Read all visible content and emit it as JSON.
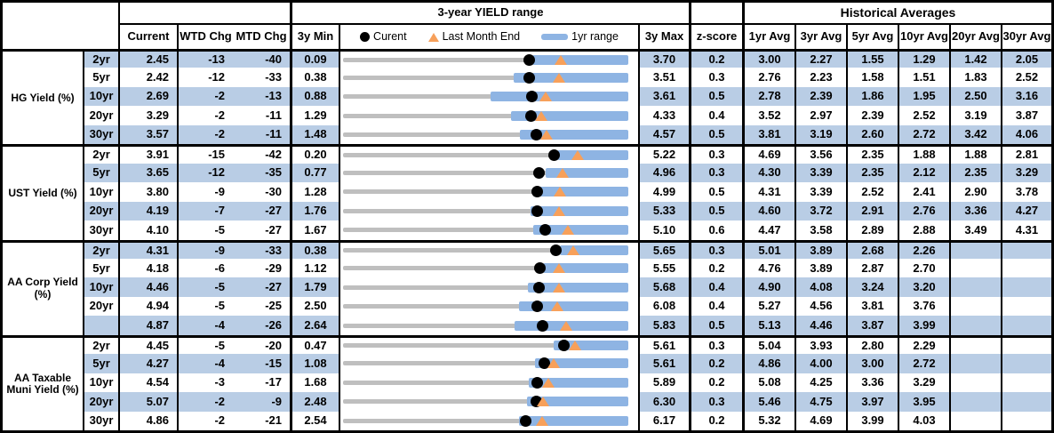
{
  "header": {
    "chart_title": "3-year YIELD range",
    "hist_title": "Historical Averages",
    "current": "Current",
    "wtd": "WTD Chg",
    "mtd": "MTD Chg",
    "min": "3y Min",
    "max": "3y Max",
    "z": "z-score",
    "avgs": [
      "1yr Avg",
      "3yr Avg",
      "5yr Avg",
      "10yr Avg",
      "20yr Avg",
      "30yr Avg"
    ],
    "legend": {
      "current": "Curent",
      "last_month": "Last Month End",
      "range": "1yr range"
    }
  },
  "colors": {
    "stripe": "#B9CDE5",
    "range_bar": "#8EB4E3",
    "track_gray": "#BFBFBF",
    "marker_dot": "#000000",
    "marker_triangle": "#F7A05A",
    "border": "#000000"
  },
  "chart_data": {
    "type": "table",
    "embedded_chart": {
      "type": "range-bar",
      "title": "3-year YIELD range",
      "legend": [
        "Curent",
        "Last Month End",
        "1yr range"
      ],
      "note": "gray track spans 3y Min to 3y Max; blue bar is 1yr range; black dot is current; orange triangle is last month end"
    },
    "columns": [
      "Current",
      "WTD Chg",
      "MTD Chg",
      "3y Min",
      "3-year YIELD range",
      "3y Max",
      "z-score",
      "1yr Avg",
      "3yr Avg",
      "5yr Avg",
      "10yr Avg",
      "20yr Avg",
      "30yr Avg"
    ],
    "groups": [
      {
        "label": "HG Yield (%)",
        "rows": [
          {
            "tenor": "2yr",
            "current": "2.45",
            "wtd": "-13",
            "mtd": "-40",
            "min3y": "0.09",
            "max3y": "3.70",
            "z": "0.2",
            "avgs": [
              "3.00",
              "2.27",
              "1.55",
              "1.29",
              "1.42",
              "2.05"
            ],
            "last_month_end": 2.85,
            "range1y_lo": 2.49,
            "range1y_hi": 3.7
          },
          {
            "tenor": "5yr",
            "current": "2.42",
            "wtd": "-12",
            "mtd": "-33",
            "min3y": "0.38",
            "max3y": "3.51",
            "z": "0.3",
            "avgs": [
              "2.76",
              "2.23",
              "1.58",
              "1.51",
              "1.83",
              "2.52"
            ],
            "last_month_end": 2.75,
            "range1y_lo": 2.25,
            "range1y_hi": 3.51
          },
          {
            "tenor": "10yr",
            "current": "2.69",
            "wtd": "-2",
            "mtd": "-13",
            "min3y": "0.88",
            "max3y": "3.61",
            "z": "0.5",
            "avgs": [
              "2.78",
              "2.39",
              "1.86",
              "1.95",
              "2.50",
              "3.16"
            ],
            "last_month_end": 2.82,
            "range1y_lo": 2.29,
            "range1y_hi": 3.61
          },
          {
            "tenor": "20yr",
            "current": "3.29",
            "wtd": "-2",
            "mtd": "-11",
            "min3y": "1.29",
            "max3y": "4.33",
            "z": "0.4",
            "avgs": [
              "3.52",
              "2.97",
              "2.39",
              "2.52",
              "3.19",
              "3.87"
            ],
            "last_month_end": 3.4,
            "range1y_lo": 3.08,
            "range1y_hi": 4.33
          },
          {
            "tenor": "30yr",
            "current": "3.57",
            "wtd": "-2",
            "mtd": "-11",
            "min3y": "1.48",
            "max3y": "4.57",
            "z": "0.5",
            "avgs": [
              "3.81",
              "3.19",
              "2.60",
              "2.72",
              "3.42",
              "4.06"
            ],
            "last_month_end": 3.68,
            "range1y_lo": 3.4,
            "range1y_hi": 4.57
          }
        ]
      },
      {
        "label": "UST Yield (%)",
        "rows": [
          {
            "tenor": "2yr",
            "current": "3.91",
            "wtd": "-15",
            "mtd": "-42",
            "min3y": "0.20",
            "max3y": "5.22",
            "z": "0.3",
            "avgs": [
              "4.69",
              "3.56",
              "2.35",
              "1.88",
              "1.88",
              "2.81"
            ],
            "last_month_end": 4.33,
            "range1y_lo": 3.97,
            "range1y_hi": 5.22
          },
          {
            "tenor": "5yr",
            "current": "3.65",
            "wtd": "-12",
            "mtd": "-35",
            "min3y": "0.77",
            "max3y": "4.96",
            "z": "0.3",
            "avgs": [
              "4.30",
              "3.39",
              "2.35",
              "2.12",
              "2.35",
              "3.29"
            ],
            "last_month_end": 4.0,
            "range1y_lo": 3.74,
            "range1y_hi": 4.96
          },
          {
            "tenor": "10yr",
            "current": "3.80",
            "wtd": "-9",
            "mtd": "-30",
            "min3y": "1.28",
            "max3y": "4.99",
            "z": "0.5",
            "avgs": [
              "4.31",
              "3.39",
              "2.52",
              "2.41",
              "2.90",
              "3.78"
            ],
            "last_month_end": 4.1,
            "range1y_lo": 3.84,
            "range1y_hi": 4.99
          },
          {
            "tenor": "20yr",
            "current": "4.19",
            "wtd": "-7",
            "mtd": "-27",
            "min3y": "1.76",
            "max3y": "5.33",
            "z": "0.5",
            "avgs": [
              "4.60",
              "3.72",
              "2.91",
              "2.76",
              "3.36",
              "4.27"
            ],
            "last_month_end": 4.46,
            "range1y_lo": 4.11,
            "range1y_hi": 5.33
          },
          {
            "tenor": "30yr",
            "current": "4.10",
            "wtd": "-5",
            "mtd": "-27",
            "min3y": "1.67",
            "max3y": "5.10",
            "z": "0.6",
            "avgs": [
              "4.47",
              "3.58",
              "2.89",
              "2.88",
              "3.49",
              "4.31"
            ],
            "last_month_end": 4.37,
            "range1y_lo": 3.96,
            "range1y_hi": 5.1
          }
        ]
      },
      {
        "label": "AA Corp Yield (%)",
        "rows": [
          {
            "tenor": "2yr",
            "current": "4.31",
            "wtd": "-9",
            "mtd": "-33",
            "min3y": "0.38",
            "max3y": "5.65",
            "z": "0.3",
            "avgs": [
              "5.01",
              "3.89",
              "2.68",
              "2.26",
              "",
              ""
            ],
            "last_month_end": 4.64,
            "range1y_lo": 4.38,
            "range1y_hi": 5.65
          },
          {
            "tenor": "5yr",
            "current": "4.18",
            "wtd": "-6",
            "mtd": "-29",
            "min3y": "1.12",
            "max3y": "5.55",
            "z": "0.2",
            "avgs": [
              "4.76",
              "3.89",
              "2.87",
              "2.70",
              "",
              ""
            ],
            "last_month_end": 4.47,
            "range1y_lo": 4.22,
            "range1y_hi": 5.55
          },
          {
            "tenor": "10yr",
            "current": "4.46",
            "wtd": "-5",
            "mtd": "-27",
            "min3y": "1.79",
            "max3y": "5.68",
            "z": "0.4",
            "avgs": [
              "4.90",
              "4.08",
              "3.24",
              "3.20",
              "",
              ""
            ],
            "last_month_end": 4.73,
            "range1y_lo": 4.31,
            "range1y_hi": 5.68
          },
          {
            "tenor": "20yr",
            "current": "4.94",
            "wtd": "-5",
            "mtd": "-25",
            "min3y": "2.50",
            "max3y": "6.08",
            "z": "0.4",
            "avgs": [
              "5.27",
              "4.56",
              "3.81",
              "3.76",
              "",
              ""
            ],
            "last_month_end": 5.19,
            "range1y_lo": 4.71,
            "range1y_hi": 6.08
          },
          {
            "tenor": "",
            "current": "4.87",
            "wtd": "-4",
            "mtd": "-26",
            "min3y": "2.64",
            "max3y": "5.83",
            "z": "0.5",
            "avgs": [
              "5.13",
              "4.46",
              "3.87",
              "3.99",
              "",
              ""
            ],
            "last_month_end": 5.13,
            "range1y_lo": 4.56,
            "range1y_hi": 5.83
          }
        ]
      },
      {
        "label": "AA Taxable Muni Yield (%)",
        "rows": [
          {
            "tenor": "2yr",
            "current": "4.45",
            "wtd": "-5",
            "mtd": "-20",
            "min3y": "0.47",
            "max3y": "5.61",
            "z": "0.3",
            "avgs": [
              "5.04",
              "3.93",
              "2.80",
              "2.29",
              "",
              ""
            ],
            "last_month_end": 4.65,
            "range1y_lo": 4.27,
            "range1y_hi": 5.61
          },
          {
            "tenor": "5yr",
            "current": "4.27",
            "wtd": "-4",
            "mtd": "-15",
            "min3y": "1.08",
            "max3y": "5.61",
            "z": "0.2",
            "avgs": [
              "4.86",
              "4.00",
              "3.00",
              "2.72",
              "",
              ""
            ],
            "last_month_end": 4.42,
            "range1y_lo": 4.13,
            "range1y_hi": 5.61
          },
          {
            "tenor": "10yr",
            "current": "4.54",
            "wtd": "-3",
            "mtd": "-17",
            "min3y": "1.68",
            "max3y": "5.89",
            "z": "0.2",
            "avgs": [
              "5.08",
              "4.25",
              "3.36",
              "3.29",
              "",
              ""
            ],
            "last_month_end": 4.71,
            "range1y_lo": 4.42,
            "range1y_hi": 5.89
          },
          {
            "tenor": "20yr",
            "current": "5.07",
            "wtd": "-2",
            "mtd": "-9",
            "min3y": "2.48",
            "max3y": "6.30",
            "z": "0.3",
            "avgs": [
              "5.46",
              "4.75",
              "3.97",
              "3.95",
              "",
              ""
            ],
            "last_month_end": 5.16,
            "range1y_lo": 4.94,
            "range1y_hi": 6.3
          },
          {
            "tenor": "30yr",
            "current": "4.86",
            "wtd": "-2",
            "mtd": "-21",
            "min3y": "2.54",
            "max3y": "6.17",
            "z": "0.2",
            "avgs": [
              "5.32",
              "4.69",
              "3.99",
              "4.03",
              "",
              ""
            ],
            "last_month_end": 5.07,
            "range1y_lo": 4.78,
            "range1y_hi": 6.17
          }
        ]
      }
    ]
  }
}
